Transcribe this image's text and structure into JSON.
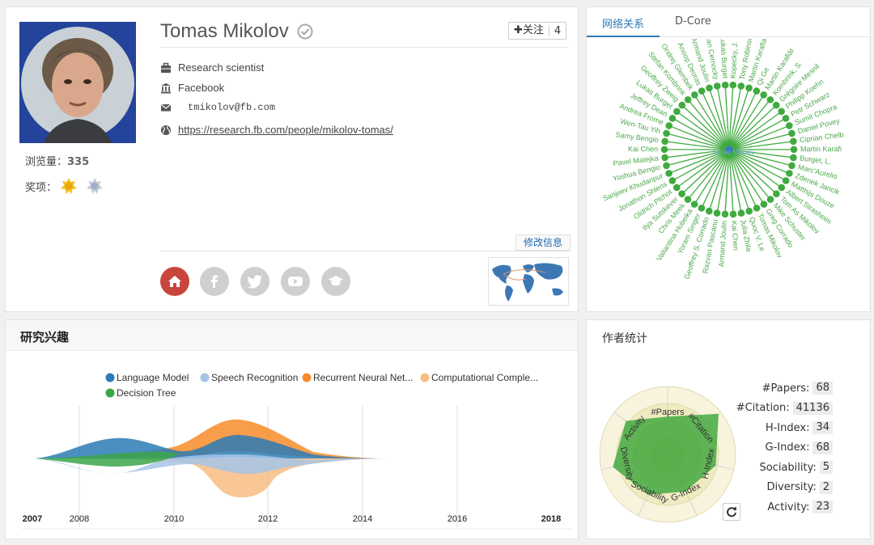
{
  "profile": {
    "name": "Tomas Mikolov",
    "follow_label": "✚关注",
    "follow_count": "4",
    "position": "Research scientist",
    "affiliation": "Facebook",
    "email": "tmikolov@fb.com",
    "homepage": "https://research.fb.com/people/mikolov-tomas/",
    "views_label": "浏览量：",
    "views": "335",
    "awards_label": "奖项：",
    "edit_label": "修改信息"
  },
  "network": {
    "tabs": [
      "网络关系",
      "D-Core"
    ],
    "center": "Tomas Mikolov",
    "node_color": "#3faa3f",
    "center_color": "#3c78c8",
    "coauthors": [
      "Kopecky, J.",
      "Tony Robinso",
      "Martin Karafia",
      "Qi Ge",
      "Martin Karafiát",
      "Kombrink, S.",
      "Grégoire Mesnil",
      "Philipp Koehn",
      "Petr Schwarz",
      "Sumit Chopra",
      "Daniel Povey",
      "Ciprian Chelb",
      "Martin Karafi",
      "Burget, L.",
      "Marc'Aurelio",
      "Zdenek Jancik",
      "Matthijs Douze",
      "Albert Strasheim",
      "Tom As Mikolov",
      "Mike Schuster",
      "Greg Corrado",
      "Tomas Mikolov",
      "Quoc V. Le",
      "Julia Zhila",
      "Kai Chen",
      "Armand Joulin",
      "Razvan Pascanu",
      "Geoffrey S. Corrado",
      "Yoram Singer",
      "Valiantina Hubeika",
      "Chris Meek",
      "Ilya Sutskever",
      "Oldrich Plchot",
      "Jonathon Shlens",
      "Sanjeev Khudanpur",
      "Yoshua Bengio",
      "Pavel Matejka",
      "Kai Chen",
      "Samy Bengio",
      "Wen-Tau Yih",
      "Andrea Frome",
      "Jeffrey Dean",
      "Lukas Burget",
      "Geoffrey Zweig",
      "Stefan Kombrink",
      "Ondrej Glembek",
      "Anoop Deoras",
      "Armand Joulin",
      "Jan Cernocky",
      "Lukas Burget"
    ]
  },
  "interest": {
    "title": "研究兴趣",
    "legend": [
      {
        "label": "Language Model",
        "color": "#2c7bb6"
      },
      {
        "label": "Speech Recognition",
        "color": "#a6c4e6"
      },
      {
        "label": "Recurrent Neural Net...",
        "color": "#f78c2a"
      },
      {
        "label": "Computational Comple...",
        "color": "#f7bd82"
      },
      {
        "label": "Decision Tree",
        "color": "#3aa64a"
      }
    ],
    "years": [
      "2007",
      "2008",
      "2010",
      "2012",
      "2014",
      "2016",
      "2018"
    ]
  },
  "stats": {
    "title": "作者统计",
    "radar_axes": [
      "#Papers",
      "#Citation",
      "H-Index",
      "G-Index",
      "Sociability",
      "Diversity",
      "Activity"
    ],
    "radar_values": [
      0.55,
      0.95,
      0.72,
      0.6,
      0.65,
      0.82,
      0.78
    ],
    "rows": [
      {
        "label": "#Papers:",
        "value": "68"
      },
      {
        "label": "#Citation:",
        "value": "41136"
      },
      {
        "label": "H-Index:",
        "value": "34"
      },
      {
        "label": "G-Index:",
        "value": "68"
      },
      {
        "label": "Sociability:",
        "value": "5"
      },
      {
        "label": "Diversity:",
        "value": "2"
      },
      {
        "label": "Activity:",
        "value": "23"
      }
    ]
  }
}
